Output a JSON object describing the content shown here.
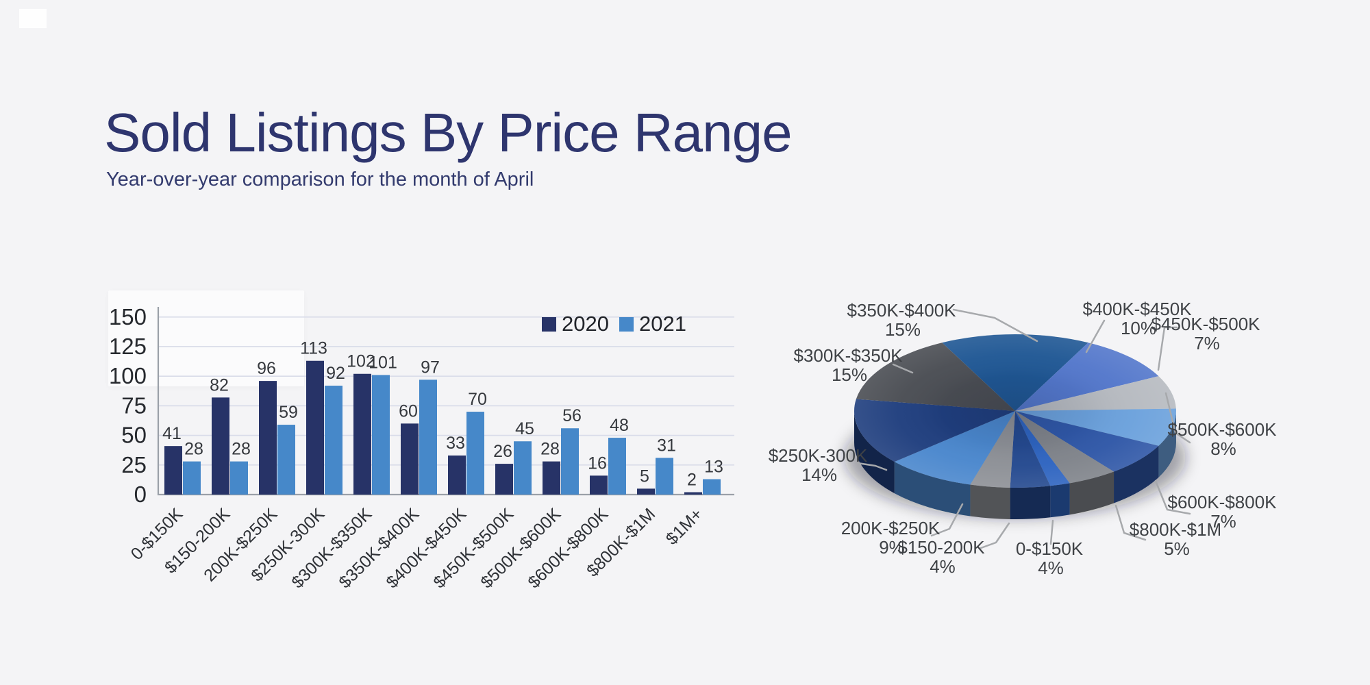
{
  "header": {
    "title": "Sold Listings By Price Range",
    "subtitle": "Year-over-year comparison for the month of April",
    "title_color": "#2e356e"
  },
  "colors": {
    "background": "#f4f4f6",
    "series_2020": "#273367",
    "series_2021": "#4688c9",
    "gridline": "#d9dce9",
    "axis": "#9aa0a8",
    "value_label": "#35383d",
    "tick_label": "#2e3136",
    "pie_label": "#3f4246",
    "leader_line": "#a7a9ac"
  },
  "chart_data": [
    {
      "type": "bar",
      "title": "",
      "xlabel": "",
      "ylabel": "",
      "ylim": [
        0,
        150
      ],
      "yticks": [
        0,
        25,
        50,
        75,
        100,
        125,
        150
      ],
      "grid": true,
      "legend_position": "top-right",
      "value_labels": true,
      "categories": [
        "0-$150K",
        "$150-200K",
        "200K-$250K",
        "$250K-300K",
        "$300K-$350K",
        "$350K-$400K",
        "$400K-$450K",
        "$450K-$500K",
        "$500K-$600K",
        "$600K-$800K",
        "$800K-$1M",
        "$1M+"
      ],
      "series": [
        {
          "name": "2020",
          "color": "#273367",
          "values": [
            41,
            82,
            96,
            113,
            102,
            60,
            33,
            26,
            28,
            16,
            5,
            2
          ]
        },
        {
          "name": "2021",
          "color": "#4688c9",
          "values": [
            28,
            28,
            59,
            92,
            101,
            97,
            70,
            45,
            56,
            48,
            31,
            13
          ]
        }
      ]
    },
    {
      "type": "pie",
      "style": "3d",
      "start_angle_deg": -27,
      "slices": [
        {
          "label": "$350K-$400K",
          "pct": 15,
          "pct_label": "15%",
          "color": "#1f5794",
          "labeled": true
        },
        {
          "label": "$400K-$450K",
          "pct": 10,
          "pct_label": "10%",
          "color": "#5377cb",
          "labeled": true
        },
        {
          "label": "$450K-$500K",
          "pct": 7,
          "pct_label": "7%",
          "color": "#b6bac0",
          "labeled": true
        },
        {
          "label": "$500K-$600K",
          "pct": 8,
          "pct_label": "8%",
          "color": "#6ba1dc",
          "labeled": true
        },
        {
          "label": "$600K-$800K",
          "pct": 7,
          "pct_label": "7%",
          "color": "#2f57a7",
          "labeled": true
        },
        {
          "label": "$800K-$1M",
          "pct": 5,
          "pct_label": "5%",
          "color": "#7f838a",
          "labeled": true
        },
        {
          "label": "$1M+",
          "pct": 2,
          "pct_label": "2%",
          "color": "#2e64c0",
          "labeled": false
        },
        {
          "label": "0-$150K",
          "pct": 4,
          "pct_label": "4%",
          "color": "#24498f",
          "labeled": true
        },
        {
          "label": "$150-200K",
          "pct": 4,
          "pct_label": "4%",
          "color": "#8d9096",
          "labeled": true
        },
        {
          "label": "200K-$250K",
          "pct": 9,
          "pct_label": "9%",
          "color": "#4a87cd",
          "labeled": true
        },
        {
          "label": "$250K-300K",
          "pct": 14,
          "pct_label": "14%",
          "color": "#1f3e7e",
          "labeled": true
        },
        {
          "label": "$300K-$350K",
          "pct": 15,
          "pct_label": "15%",
          "color": "#4a4d53",
          "labeled": true
        }
      ]
    }
  ]
}
